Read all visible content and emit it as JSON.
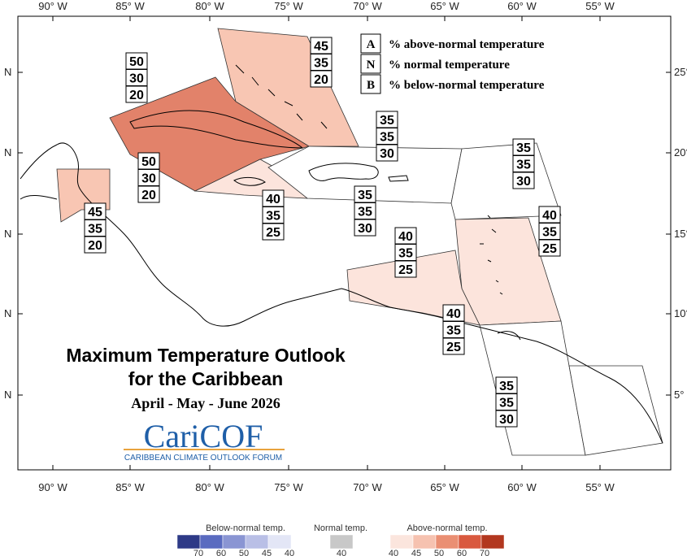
{
  "map": {
    "title_line1": "Maximum Temperature Outlook",
    "title_line2": "for the Caribbean",
    "period": "April - May - June 2026",
    "logo": "CariCOF",
    "logo_subtitle": "CARIBBEAN CLIMATE OUTLOOK FORUM",
    "lon_labels": [
      "90° W",
      "85° W",
      "80° W",
      "75° W",
      "70° W",
      "65° W",
      "60° W",
      "55° W"
    ],
    "lat_labels_left": [
      "N",
      "N",
      "N",
      "N",
      "N"
    ],
    "lat_labels_right": [
      "25°",
      "20°",
      "15°",
      "10°",
      "5°"
    ],
    "key": [
      {
        "letter": "A",
        "text": "% above-normal temperature"
      },
      {
        "letter": "N",
        "text": "% normal temperature"
      },
      {
        "letter": "B",
        "text": "% below-normal temperature"
      }
    ],
    "outlooks": [
      {
        "A": 50,
        "N": 30,
        "B": 20
      },
      {
        "A": 45,
        "N": 35,
        "B": 20
      },
      {
        "A": 50,
        "N": 30,
        "B": 20
      },
      {
        "A": 45,
        "N": 35,
        "B": 20
      },
      {
        "A": 40,
        "N": 35,
        "B": 25
      },
      {
        "A": 35,
        "N": 35,
        "B": 30
      },
      {
        "A": 35,
        "N": 35,
        "B": 30
      },
      {
        "A": 35,
        "N": 35,
        "B": 30
      },
      {
        "A": 40,
        "N": 35,
        "B": 25
      },
      {
        "A": 40,
        "N": 35,
        "B": 25
      },
      {
        "A": 40,
        "N": 35,
        "B": 25
      },
      {
        "A": 35,
        "N": 35,
        "B": 30
      }
    ],
    "legend": {
      "below": {
        "title": "Below-normal temp.",
        "ticks": [
          70,
          60,
          50,
          45,
          40
        ],
        "colors": [
          "#2e3a87",
          "#5a6bc0",
          "#8a95d3",
          "#b9bfe6",
          "#e3e6f6"
        ]
      },
      "normal": {
        "title": "Normal temp.",
        "ticks": [
          40
        ],
        "colors": [
          "#c8c8c8"
        ]
      },
      "above": {
        "title": "Above-normal temp.",
        "ticks": [
          40,
          45,
          50,
          60,
          70
        ],
        "colors": [
          "#fbe5dd",
          "#f6c2b0",
          "#ea8f73",
          "#d9593f",
          "#b2371f"
        ]
      }
    }
  }
}
